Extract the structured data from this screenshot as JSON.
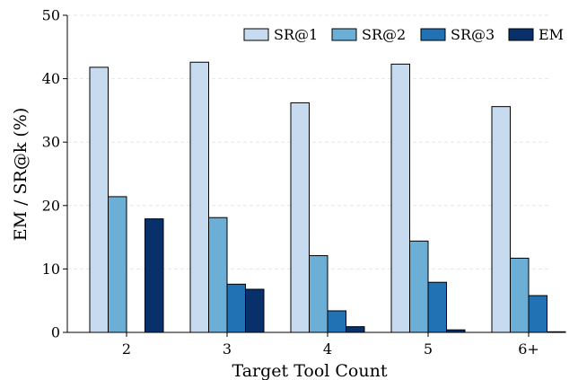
{
  "chart_data": {
    "type": "bar",
    "xlabel": "Target Tool Count",
    "ylabel": "EM / SR@k (%)",
    "categories": [
      "2",
      "3",
      "4",
      "5",
      "6+"
    ],
    "ylim": [
      0,
      50
    ],
    "yticks": [
      0,
      10,
      20,
      30,
      40,
      50
    ],
    "grid": "horizontal dashed (light)",
    "legend_position": "top-right",
    "series": [
      {
        "name": "SR@1",
        "color": "#c6dbef",
        "values": [
          41.8,
          42.6,
          36.2,
          42.3,
          35.6
        ]
      },
      {
        "name": "SR@2",
        "color": "#6baed6",
        "values": [
          21.4,
          18.1,
          12.1,
          14.4,
          11.7
        ]
      },
      {
        "name": "SR@3",
        "color": "#2171b5",
        "values": [
          0,
          7.6,
          3.4,
          7.9,
          5.8
        ]
      },
      {
        "name": "EM",
        "color": "#08306b",
        "values": [
          17.9,
          6.8,
          0.9,
          0.4,
          0.1
        ]
      }
    ]
  }
}
